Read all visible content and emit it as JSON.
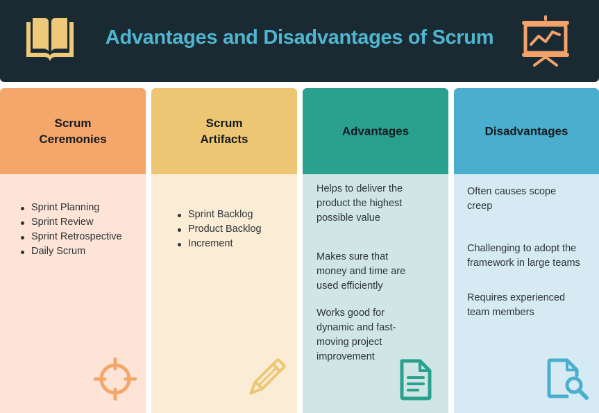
{
  "header": {
    "title": "Advantages and Disadvantages of Scrum",
    "left_icon": "book-icon",
    "right_icon": "presentation-chart-icon"
  },
  "columns": [
    {
      "heading_line1": "Scrum",
      "heading_line2": "Ceremonies",
      "items": [
        "Sprint Planning",
        "Sprint Review",
        "Sprint Retrospective",
        "Daily Scrum"
      ],
      "icon": "target-icon",
      "header_color": "#f4a66b",
      "body_color": "#fde4d6",
      "icon_color": "#f4a66b"
    },
    {
      "heading_line1": "Scrum",
      "heading_line2": "Artifacts",
      "items": [
        "Sprint Backlog",
        "Product Backlog",
        "Increment"
      ],
      "icon": "pencil-icon",
      "header_color": "#ecc672",
      "body_color": "#fbecd5",
      "icon_color": "#ecc672"
    },
    {
      "heading": "Advantages",
      "points": [
        [
          "Helps to deliver the",
          "product the highest",
          "possible value"
        ],
        [
          "Makes sure that",
          "money and time are",
          "used efficiently"
        ],
        [
          "Works good for",
          "dynamic and fast-",
          "moving project",
          "improvement"
        ]
      ],
      "icon": "document-icon",
      "header_color": "#2aa08f",
      "body_color": "#cfe6e4",
      "icon_color": "#2aa08f"
    },
    {
      "heading": "Disadvantages",
      "points": [
        [
          "Often causes scope",
          "creep"
        ],
        [
          "Challenging to adopt the",
          "framework in large teams"
        ],
        [
          "Requires experienced",
          "team members"
        ]
      ],
      "icon": "file-search-icon",
      "header_color": "#4aaecf",
      "body_color": "#d5eaf3",
      "icon_color": "#4aaecf"
    }
  ]
}
